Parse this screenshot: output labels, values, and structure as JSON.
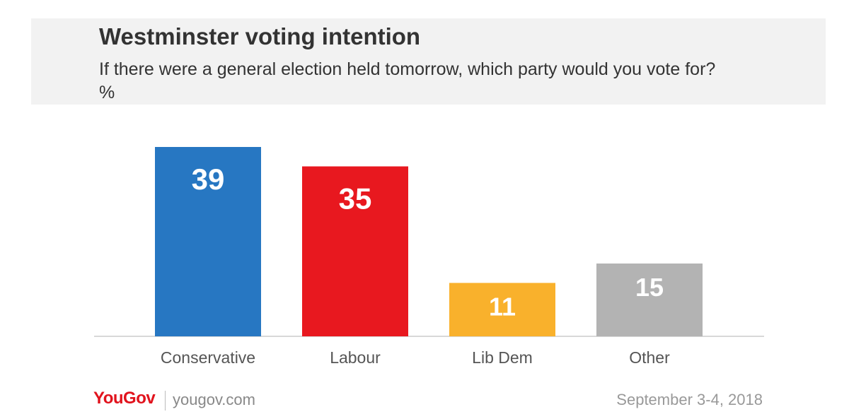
{
  "chart_data": {
    "type": "bar",
    "title": "Westminster voting intention",
    "subtitle": "If there were a general election held tomorrow, which party would you vote for? %",
    "categories": [
      "Conservative",
      "Labour",
      "Lib Dem",
      "Other"
    ],
    "values": [
      39,
      35,
      11,
      15
    ],
    "colors": [
      "#2777c2",
      "#e8181f",
      "#f9b12c",
      "#b3b3b3"
    ],
    "ylim": [
      0,
      39
    ],
    "grid": false,
    "legend": "none"
  },
  "footer": {
    "logo": "YouGov",
    "url": "yougov.com",
    "date": "September 3-4, 2018"
  }
}
